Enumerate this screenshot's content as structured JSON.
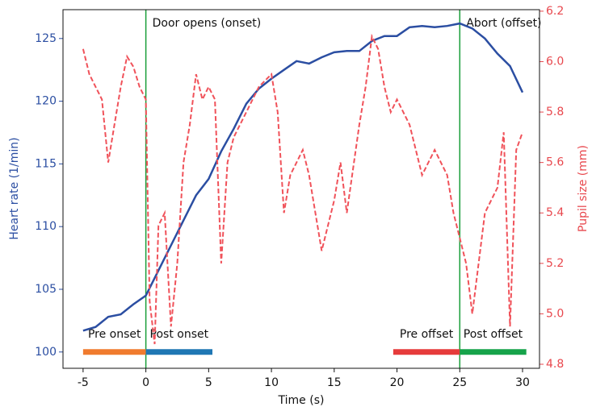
{
  "chart_data": {
    "type": "line",
    "xlabel": "Time (s)",
    "ylabel": "Heart rate (1/min)",
    "y2label": "Pupil size (mm)",
    "xlim": [
      -6.6,
      31.35
    ],
    "ylim": [
      98.7,
      127.3
    ],
    "y2lim": [
      4.784,
      6.206
    ],
    "xticks": [
      -5,
      0,
      5,
      10,
      15,
      20,
      25,
      30
    ],
    "yticks": [
      100,
      105,
      110,
      115,
      120,
      125
    ],
    "y2ticks": [
      4.8,
      {
        "value": 5,
        "label": "5.0"
      },
      5.2,
      5.4,
      5.6,
      5.8,
      {
        "value": 6,
        "label": "6.0"
      },
      6.2
    ],
    "ylabel_color": "#2b4ea2",
    "y2label_color": "#e8474d",
    "series": [
      {
        "name": "Heart rate",
        "color": "#2b4ea2",
        "dash": false,
        "x": [
          -5,
          -4,
          -3,
          -2,
          -1,
          0,
          1,
          2,
          3,
          4,
          5,
          6,
          7,
          8,
          9,
          10,
          11,
          12,
          13,
          14,
          15,
          16,
          17,
          18,
          19,
          20,
          21,
          22,
          23,
          24,
          25,
          26,
          27,
          28,
          29,
          30
        ],
        "values": [
          101.7,
          102,
          102.8,
          103,
          103.8,
          104.5,
          106.5,
          108.5,
          110.5,
          112.5,
          113.8,
          116,
          117.8,
          119.8,
          121,
          121.8,
          122.5,
          123.2,
          123,
          123.5,
          123.9,
          124,
          124,
          124.8,
          125.2,
          125.2,
          125.9,
          126,
          125.9,
          126,
          126.2,
          125.8,
          125,
          123.8,
          122.8,
          120.7
        ]
      },
      {
        "name": "Pupil size",
        "color": "#f0525a",
        "dash": true,
        "axis": "y2",
        "x": [
          -5,
          -4.5,
          -4,
          -3.5,
          -3,
          -2.5,
          -2,
          -1.5,
          -1,
          -0.5,
          0,
          0.3,
          0.7,
          1,
          1.5,
          2,
          2.5,
          3,
          3.5,
          4,
          4.5,
          5,
          5.5,
          6,
          6.5,
          7,
          8,
          9,
          10,
          10.5,
          11,
          11.5,
          12,
          12.5,
          13,
          14,
          15,
          15.5,
          16,
          17,
          17.5,
          18,
          18.5,
          19,
          19.5,
          20,
          21,
          22,
          23,
          24,
          24.5,
          25,
          25.5,
          26,
          26.5,
          27,
          28,
          28.5,
          29,
          29.5,
          30
        ],
        "values": [
          6.05,
          5.95,
          5.9,
          5.85,
          5.6,
          5.75,
          5.9,
          6.02,
          5.98,
          5.9,
          5.85,
          5.05,
          4.88,
          5.35,
          5.4,
          4.95,
          5.2,
          5.6,
          5.75,
          5.95,
          5.85,
          5.9,
          5.85,
          5.2,
          5.6,
          5.7,
          5.8,
          5.9,
          5.95,
          5.8,
          5.4,
          5.55,
          5.6,
          5.65,
          5.55,
          5.25,
          5.45,
          5.6,
          5.4,
          5.75,
          5.9,
          6.1,
          6.05,
          5.9,
          5.8,
          5.85,
          5.75,
          5.55,
          5.65,
          5.55,
          5.4,
          5.3,
          5.2,
          5,
          5.2,
          5.4,
          5.5,
          5.72,
          4.95,
          5.65,
          5.72
        ]
      }
    ],
    "vlines": [
      {
        "x": 0,
        "label": "Door opens (onset)",
        "color": "#1a9e3a"
      },
      {
        "x": 25,
        "label": "Abort (offset)",
        "color": "#1a9e3a"
      }
    ],
    "intervals": [
      {
        "label": "Pre onset",
        "start": -5,
        "end": 0,
        "y": 100,
        "color": "#f07b2e"
      },
      {
        "label": "Post onset",
        "start": 0,
        "end": 5.3,
        "y": 100,
        "color": "#1f77b4"
      },
      {
        "label": "Pre offset",
        "start": 19.7,
        "end": 25,
        "y": 100,
        "color": "#e63b3b"
      },
      {
        "label": "Post offset",
        "start": 25,
        "end": 30.3,
        "y": 100,
        "color": "#16a34a"
      }
    ]
  }
}
